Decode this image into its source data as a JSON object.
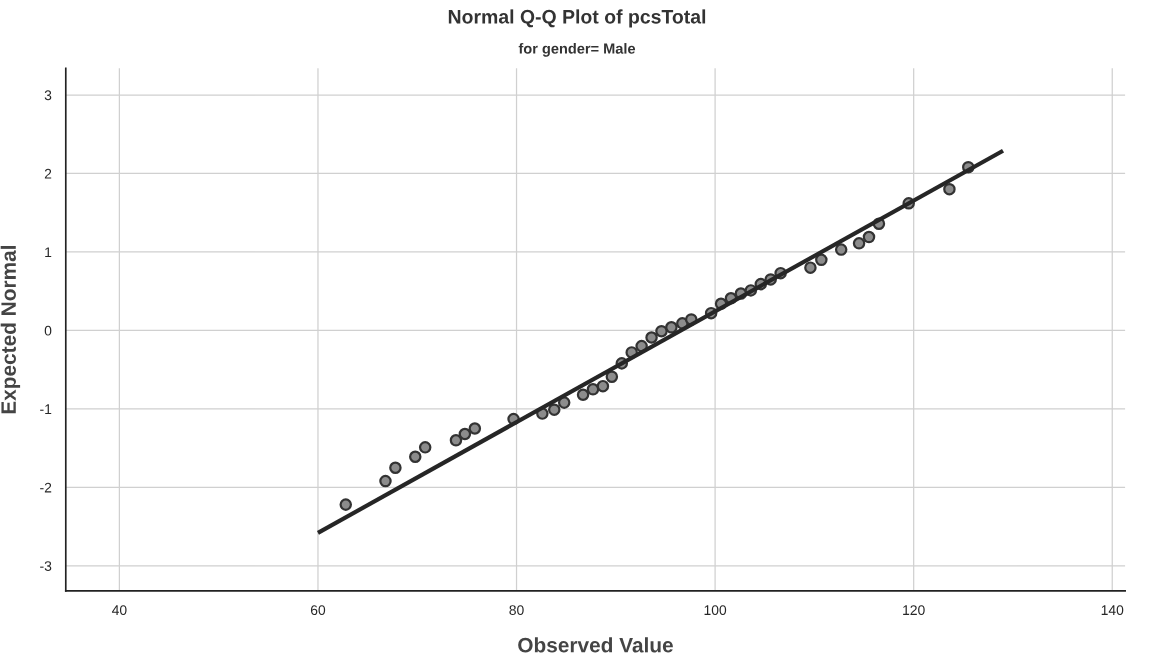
{
  "chart_data": {
    "type": "scatter",
    "title": "Normal Q-Q Plot of pcsTotal",
    "subtitle": "for gender= Male",
    "xlabel": "Observed Value",
    "ylabel": "Expected Normal",
    "series": [
      {
        "marker": "circle",
        "color": "#8c8c8c",
        "x": [
          62.8,
          66.8,
          67.8,
          69.8,
          70.8,
          73.9,
          74.8,
          75.8,
          79.7,
          82.6,
          83.8,
          84.8,
          86.7,
          87.7,
          88.7,
          89.6,
          90.6,
          91.6,
          92.6,
          93.6,
          94.6,
          95.6,
          96.7,
          97.6,
          99.6,
          100.6,
          101.6,
          102.6,
          103.6,
          104.6,
          105.6,
          106.6,
          109.6,
          110.7,
          112.7,
          114.5,
          115.5,
          116.5,
          119.5,
          123.6,
          125.5
        ],
        "values": [
          -2.22,
          -1.92,
          -1.75,
          -1.61,
          -1.49,
          -1.4,
          -1.32,
          -1.25,
          -1.13,
          -1.06,
          -1.01,
          -0.92,
          -0.82,
          -0.75,
          -0.71,
          -0.59,
          -0.42,
          -0.28,
          -0.2,
          -0.09,
          -0.01,
          0.04,
          0.09,
          0.14,
          0.22,
          0.34,
          0.41,
          0.47,
          0.51,
          0.59,
          0.65,
          0.73,
          0.8,
          0.9,
          1.03,
          1.11,
          1.19,
          1.36,
          1.62,
          1.8,
          2.08
        ]
      },
      {
        "type": "line",
        "color": "#262626",
        "x": [
          60,
          129
        ],
        "values": [
          -2.58,
          2.29
        ]
      }
    ],
    "xlim": [
      34.6,
      141.3
    ],
    "xticks": [
      40,
      60,
      80,
      100,
      120,
      140
    ],
    "ylim": [
      -3.32,
      3.34
    ],
    "yticks": [
      -3,
      -2,
      -1,
      0,
      1,
      2,
      3
    ],
    "grid": true
  }
}
